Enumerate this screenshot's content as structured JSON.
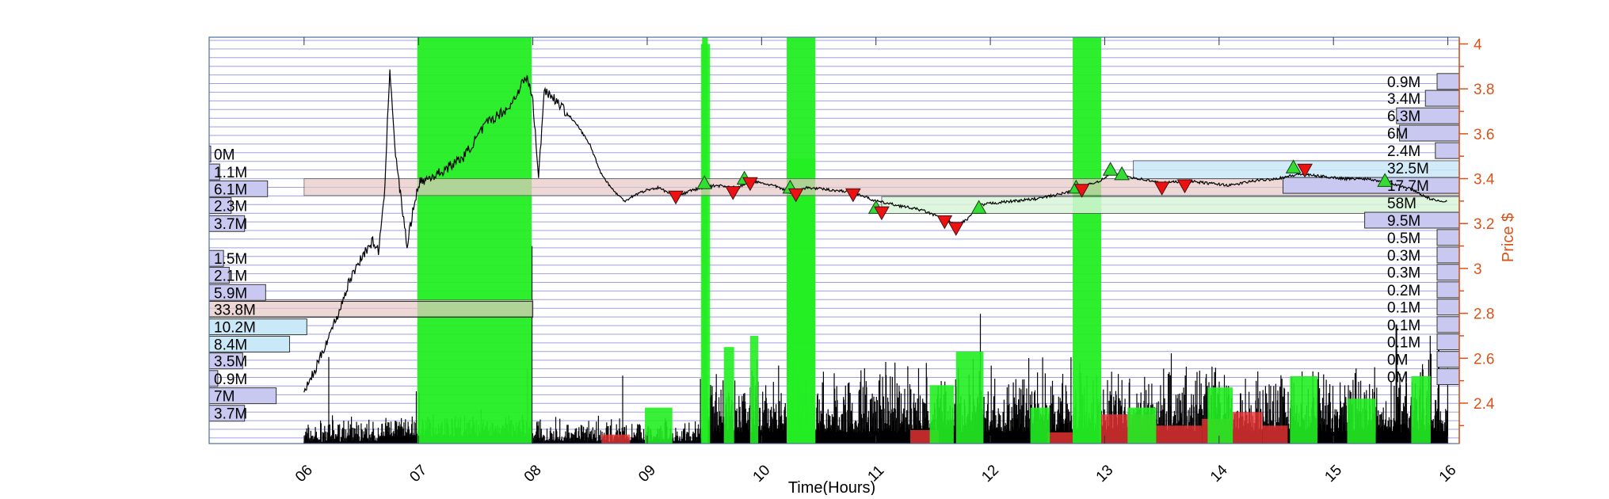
{
  "chart_data": {
    "type": "line",
    "xlabel": "Time(Hours)",
    "ylabel": "Price $",
    "xlim": [
      5.17,
      16.1
    ],
    "ylim": [
      2.22,
      4.03
    ],
    "x_tick_values": [
      6,
      7,
      8,
      9,
      10,
      11,
      12,
      13,
      14,
      15,
      16
    ],
    "x_tick_labels": [
      "06",
      "07",
      "08",
      "09",
      "10",
      "11",
      "12",
      "13",
      "14",
      "15",
      "16"
    ],
    "y_tick_values": [
      2.4,
      2.6,
      2.8,
      3.0,
      3.2,
      3.4,
      3.6,
      3.8,
      4.0
    ],
    "y_tick_labels": [
      "2.4",
      "2.6",
      "2.8",
      "3",
      "3.2",
      "3.4",
      "3.6",
      "3.8",
      "4"
    ],
    "y_axis_side": "right",
    "grid": "horizontal price-level lines",
    "colors": {
      "axis": "#d95319",
      "grid": "#8080e0",
      "price": "#000000",
      "volume": "#000000",
      "highlight": "#22ee22",
      "support_band": "#e8c8c4",
      "resistance_band": "#c9e8f8",
      "lower_band": "#d8f5d8",
      "profile_bar": "#c8c8f0",
      "buy_marker": "#33dd33",
      "sell_marker": "#ee1111",
      "sell_volume": "#ee3333"
    },
    "price_series": {
      "name": "",
      "points": [
        [
          6.0,
          2.45
        ],
        [
          6.1,
          2.55
        ],
        [
          6.2,
          2.68
        ],
        [
          6.3,
          2.8
        ],
        [
          6.4,
          2.95
        ],
        [
          6.5,
          3.05
        ],
        [
          6.6,
          3.12
        ],
        [
          6.65,
          3.08
        ],
        [
          6.7,
          3.3
        ],
        [
          6.75,
          3.9
        ],
        [
          6.8,
          3.5
        ],
        [
          6.85,
          3.3
        ],
        [
          6.9,
          3.1
        ],
        [
          6.95,
          3.25
        ],
        [
          7.0,
          3.38
        ],
        [
          7.2,
          3.43
        ],
        [
          7.4,
          3.5
        ],
        [
          7.6,
          3.65
        ],
        [
          7.8,
          3.72
        ],
        [
          7.9,
          3.82
        ],
        [
          7.95,
          3.85
        ],
        [
          8.0,
          3.75
        ],
        [
          8.05,
          3.4
        ],
        [
          8.1,
          3.8
        ],
        [
          8.2,
          3.75
        ],
        [
          8.4,
          3.63
        ],
        [
          8.5,
          3.55
        ],
        [
          8.6,
          3.42
        ],
        [
          8.7,
          3.35
        ],
        [
          8.8,
          3.3
        ],
        [
          8.9,
          3.33
        ],
        [
          9.0,
          3.35
        ],
        [
          9.1,
          3.36
        ],
        [
          9.25,
          3.32
        ],
        [
          9.4,
          3.35
        ],
        [
          9.5,
          3.36
        ],
        [
          9.6,
          3.37
        ],
        [
          9.8,
          3.36
        ],
        [
          9.9,
          3.39
        ],
        [
          10.1,
          3.37
        ],
        [
          10.25,
          3.34
        ],
        [
          10.4,
          3.36
        ],
        [
          10.6,
          3.35
        ],
        [
          10.8,
          3.34
        ],
        [
          11.0,
          3.3
        ],
        [
          11.2,
          3.28
        ],
        [
          11.4,
          3.26
        ],
        [
          11.6,
          3.22
        ],
        [
          11.7,
          3.19
        ],
        [
          11.8,
          3.22
        ],
        [
          11.9,
          3.28
        ],
        [
          12.0,
          3.29
        ],
        [
          12.2,
          3.3
        ],
        [
          12.4,
          3.31
        ],
        [
          12.6,
          3.33
        ],
        [
          12.75,
          3.35
        ],
        [
          12.9,
          3.38
        ],
        [
          13.0,
          3.4
        ],
        [
          13.05,
          3.43
        ],
        [
          13.1,
          3.42
        ],
        [
          13.3,
          3.4
        ],
        [
          13.5,
          3.38
        ],
        [
          13.7,
          3.39
        ],
        [
          13.9,
          3.38
        ],
        [
          14.1,
          3.37
        ],
        [
          14.3,
          3.39
        ],
        [
          14.5,
          3.4
        ],
        [
          14.7,
          3.42
        ],
        [
          14.9,
          3.41
        ],
        [
          15.1,
          3.4
        ],
        [
          15.3,
          3.4
        ],
        [
          15.5,
          3.38
        ],
        [
          15.7,
          3.35
        ],
        [
          15.8,
          3.32
        ],
        [
          15.9,
          3.3
        ],
        [
          16.0,
          3.3
        ]
      ]
    },
    "highlight_regions": [
      [
        6.99,
        7.99
      ],
      [
        9.48,
        9.53
      ],
      [
        10.22,
        10.47
      ],
      [
        12.72,
        12.97
      ]
    ],
    "highlight_columns": [
      [
        8.98,
        9.22,
        2.38
      ],
      [
        9.47,
        9.55,
        4.0
      ],
      [
        9.67,
        9.76,
        2.65
      ],
      [
        9.9,
        9.97,
        2.7
      ],
      [
        10.22,
        10.47,
        3.49
      ],
      [
        11.47,
        11.68,
        2.48
      ],
      [
        11.7,
        11.94,
        2.63
      ],
      [
        12.35,
        12.52,
        2.38
      ],
      [
        13.2,
        13.45,
        2.38
      ],
      [
        13.9,
        14.12,
        2.47
      ],
      [
        14.62,
        14.86,
        2.52
      ],
      [
        15.12,
        15.37,
        2.42
      ],
      [
        15.68,
        15.85,
        2.52
      ]
    ],
    "sell_volume_columns": [
      [
        8.6,
        8.85,
        2.26
      ],
      [
        12.95,
        13.45,
        2.35
      ],
      [
        13.45,
        13.85,
        2.3
      ],
      [
        13.85,
        14.1,
        2.33
      ],
      [
        14.1,
        14.38,
        2.36
      ],
      [
        14.38,
        14.6,
        2.3
      ],
      [
        12.5,
        12.72,
        2.27
      ],
      [
        11.3,
        11.55,
        2.28
      ]
    ],
    "volume_spikes": [
      [
        7.99,
        3.1
      ],
      [
        9.5,
        2.98
      ],
      [
        15.85,
        2.62
      ],
      [
        15.92,
        2.65
      ],
      [
        15.55,
        2.75
      ],
      [
        15.78,
        2.55
      ]
    ],
    "buy_markers": [
      [
        9.5,
        3.38
      ],
      [
        9.85,
        3.4
      ],
      [
        10.25,
        3.36
      ],
      [
        11.0,
        3.27
      ],
      [
        11.9,
        3.27
      ],
      [
        12.75,
        3.36
      ],
      [
        13.05,
        3.44
      ],
      [
        13.15,
        3.42
      ],
      [
        14.65,
        3.45
      ],
      [
        15.45,
        3.39
      ]
    ],
    "sell_markers": [
      [
        9.25,
        3.32
      ],
      [
        9.75,
        3.34
      ],
      [
        9.9,
        3.38
      ],
      [
        10.3,
        3.33
      ],
      [
        10.8,
        3.33
      ],
      [
        11.05,
        3.25
      ],
      [
        11.6,
        3.21
      ],
      [
        11.7,
        3.18
      ],
      [
        12.8,
        3.35
      ],
      [
        13.5,
        3.36
      ],
      [
        13.7,
        3.37
      ],
      [
        14.75,
        3.44
      ]
    ],
    "bands": [
      {
        "type": "support_band",
        "x": [
          6.0,
          16.1
        ],
        "y": [
          3.325,
          3.4
        ]
      },
      {
        "type": "resistance_band",
        "x": [
          13.25,
          16.1
        ],
        "y": [
          3.4,
          3.48
        ]
      },
      {
        "type": "lower_band",
        "x": [
          11.05,
          16.1
        ],
        "y": [
          3.245,
          3.32
        ]
      },
      {
        "type": "support_band",
        "x": [
          5.17,
          8.0
        ],
        "y": [
          2.785,
          2.86
        ]
      }
    ],
    "left_volume_profile": [
      {
        "label": "0M",
        "price": 3.51,
        "size": 0
      },
      {
        "label": "1.1M",
        "price": 3.43,
        "size": 1.1
      },
      {
        "label": "6.1M",
        "price": 3.355,
        "size": 6.1
      },
      {
        "label": "2.3M",
        "price": 3.28,
        "size": 2.3
      },
      {
        "label": "3.7M",
        "price": 3.2,
        "size": 3.7
      },
      {
        "label": "1.5M",
        "price": 3.045,
        "size": 1.5
      },
      {
        "label": "2.1M",
        "price": 2.97,
        "size": 2.1
      },
      {
        "label": "5.9M",
        "price": 2.893,
        "size": 5.9
      },
      {
        "label": "33.8M",
        "price": 2.818,
        "size": 33.8
      },
      {
        "label": "10.2M",
        "price": 2.74,
        "size": 10.2
      },
      {
        "label": "8.4M",
        "price": 2.663,
        "size": 8.4
      },
      {
        "label": "3.5M",
        "price": 2.588,
        "size": 3.5
      },
      {
        "label": "0.9M",
        "price": 2.51,
        "size": 0.9
      },
      {
        "label": "7M",
        "price": 2.433,
        "size": 7.0
      },
      {
        "label": "3.7M",
        "price": 2.355,
        "size": 3.7
      }
    ],
    "right_volume_profile": [
      {
        "label": "0.9M",
        "price": 3.833,
        "size": 0.9
      },
      {
        "label": "3.4M",
        "price": 3.758,
        "size": 3.4
      },
      {
        "label": "6.3M",
        "price": 3.68,
        "size": 6.3
      },
      {
        "label": "6M",
        "price": 3.603,
        "size": 6.0
      },
      {
        "label": "2.4M",
        "price": 3.525,
        "size": 2.4
      },
      {
        "label": "32.5M",
        "price": 3.448,
        "size": 32.5
      },
      {
        "label": "17.7M",
        "price": 3.37,
        "size": 17.7
      },
      {
        "label": "58M",
        "price": 3.293,
        "size": 58.0
      },
      {
        "label": "9.5M",
        "price": 3.215,
        "size": 9.5
      },
      {
        "label": "0.5M",
        "price": 3.138,
        "size": 0.5
      },
      {
        "label": "0.3M",
        "price": 3.06,
        "size": 0.3
      },
      {
        "label": "0.3M",
        "price": 2.983,
        "size": 0.3
      },
      {
        "label": "0.2M",
        "price": 2.905,
        "size": 0.2
      },
      {
        "label": "0.1M",
        "price": 2.828,
        "size": 0.1
      },
      {
        "label": "0.1M",
        "price": 2.75,
        "size": 0.1
      },
      {
        "label": "0.1M",
        "price": 2.673,
        "size": 0.1
      },
      {
        "label": "0M",
        "price": 2.595,
        "size": 0
      },
      {
        "label": "0M",
        "price": 2.518,
        "size": 0
      }
    ]
  }
}
